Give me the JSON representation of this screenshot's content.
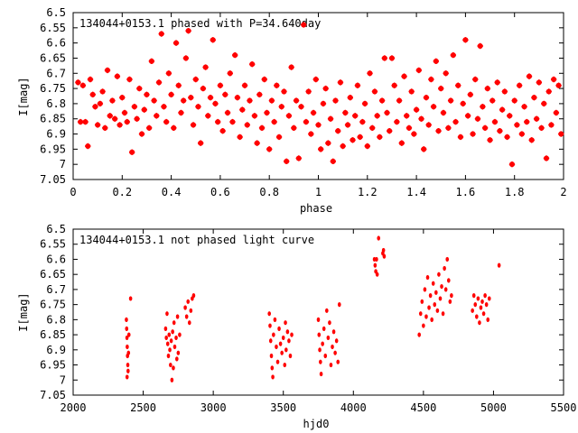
{
  "chart_data": [
    {
      "type": "scatter",
      "title": "134044+0153.1 phased with P=34.640day",
      "xlabel": "phase",
      "ylabel": "I[mag]",
      "xlim": [
        0,
        2
      ],
      "ylim": [
        6.5,
        7.05
      ],
      "y_inverted": true,
      "grid": false,
      "legend": "none",
      "xticks": [
        "0",
        "0.2",
        "0.4",
        "0.6",
        "0.8",
        "1",
        "1.2",
        "1.4",
        "1.6",
        "1.8",
        "2"
      ],
      "yticks": [
        "6.5",
        "6.55",
        "6.6",
        "6.65",
        "6.7",
        "6.75",
        "6.8",
        "6.85",
        "6.9",
        "6.95",
        "7",
        "7.05"
      ],
      "marker_color": "#ff0000",
      "points": [
        [
          0.02,
          6.73
        ],
        [
          0.03,
          6.86
        ],
        [
          0.04,
          6.74
        ],
        [
          0.05,
          6.86
        ],
        [
          0.06,
          6.94
        ],
        [
          0.07,
          6.72
        ],
        [
          0.08,
          6.77
        ],
        [
          0.09,
          6.81
        ],
        [
          0.1,
          6.87
        ],
        [
          0.11,
          6.8
        ],
        [
          0.12,
          6.76
        ],
        [
          0.13,
          6.88
        ],
        [
          0.14,
          6.69
        ],
        [
          0.15,
          6.84
        ],
        [
          0.16,
          6.79
        ],
        [
          0.17,
          6.85
        ],
        [
          0.18,
          6.71
        ],
        [
          0.19,
          6.87
        ],
        [
          0.2,
          6.78
        ],
        [
          0.21,
          6.83
        ],
        [
          0.22,
          6.86
        ],
        [
          0.23,
          6.72
        ],
        [
          0.24,
          6.96
        ],
        [
          0.25,
          6.81
        ],
        [
          0.26,
          6.85
        ],
        [
          0.27,
          6.75
        ],
        [
          0.28,
          6.9
        ],
        [
          0.29,
          6.82
        ],
        [
          0.3,
          6.77
        ],
        [
          0.31,
          6.88
        ],
        [
          0.32,
          6.66
        ],
        [
          0.33,
          6.79
        ],
        [
          0.34,
          6.84
        ],
        [
          0.35,
          6.73
        ],
        [
          0.36,
          6.57
        ],
        [
          0.37,
          6.81
        ],
        [
          0.38,
          6.86
        ],
        [
          0.39,
          6.7
        ],
        [
          0.4,
          6.77
        ],
        [
          0.41,
          6.88
        ],
        [
          0.42,
          6.6
        ],
        [
          0.43,
          6.74
        ],
        [
          0.44,
          6.83
        ],
        [
          0.45,
          6.79
        ],
        [
          0.46,
          6.65
        ],
        [
          0.47,
          6.56
        ],
        [
          0.48,
          6.78
        ],
        [
          0.49,
          6.87
        ],
        [
          0.5,
          6.72
        ],
        [
          0.51,
          6.81
        ],
        [
          0.52,
          6.93
        ],
        [
          0.53,
          6.75
        ],
        [
          0.54,
          6.68
        ],
        [
          0.55,
          6.84
        ],
        [
          0.56,
          6.78
        ],
        [
          0.57,
          6.59
        ],
        [
          0.58,
          6.8
        ],
        [
          0.59,
          6.86
        ],
        [
          0.6,
          6.74
        ],
        [
          0.61,
          6.89
        ],
        [
          0.62,
          6.77
        ],
        [
          0.63,
          6.83
        ],
        [
          0.64,
          6.7
        ],
        [
          0.65,
          6.86
        ],
        [
          0.66,
          6.64
        ],
        [
          0.67,
          6.78
        ],
        [
          0.68,
          6.91
        ],
        [
          0.69,
          6.82
        ],
        [
          0.7,
          6.74
        ],
        [
          0.71,
          6.87
        ],
        [
          0.72,
          6.79
        ],
        [
          0.73,
          6.67
        ],
        [
          0.74,
          6.84
        ],
        [
          0.75,
          6.93
        ],
        [
          0.76,
          6.77
        ],
        [
          0.77,
          6.88
        ],
        [
          0.78,
          6.72
        ],
        [
          0.79,
          6.83
        ],
        [
          0.8,
          6.95
        ],
        [
          0.81,
          6.79
        ],
        [
          0.82,
          6.86
        ],
        [
          0.83,
          6.74
        ],
        [
          0.84,
          6.91
        ],
        [
          0.85,
          6.81
        ],
        [
          0.86,
          6.76
        ],
        [
          0.87,
          6.99
        ],
        [
          0.88,
          6.84
        ],
        [
          0.89,
          6.68
        ],
        [
          0.9,
          6.88
        ],
        [
          0.91,
          6.79
        ],
        [
          0.92,
          6.98
        ],
        [
          0.93,
          6.81
        ],
        [
          0.94,
          6.54
        ],
        [
          0.95,
          6.86
        ],
        [
          0.96,
          6.76
        ],
        [
          0.97,
          6.9
        ],
        [
          0.98,
          6.83
        ],
        [
          0.99,
          6.72
        ],
        [
          1.0,
          6.87
        ],
        [
          1.01,
          6.95
        ],
        [
          1.02,
          6.8
        ],
        [
          1.03,
          6.75
        ],
        [
          1.04,
          6.93
        ],
        [
          1.05,
          6.85
        ],
        [
          1.06,
          6.99
        ],
        [
          1.07,
          6.79
        ],
        [
          1.08,
          6.89
        ],
        [
          1.09,
          6.73
        ],
        [
          1.1,
          6.94
        ],
        [
          1.11,
          6.83
        ],
        [
          1.12,
          6.87
        ],
        [
          1.13,
          6.78
        ],
        [
          1.14,
          6.92
        ],
        [
          1.15,
          6.84
        ],
        [
          1.16,
          6.74
        ],
        [
          1.17,
          6.91
        ],
        [
          1.18,
          6.86
        ],
        [
          1.19,
          6.8
        ],
        [
          1.2,
          6.94
        ],
        [
          1.21,
          6.7
        ],
        [
          1.22,
          6.88
        ],
        [
          1.23,
          6.76
        ],
        [
          1.24,
          6.84
        ],
        [
          1.25,
          6.91
        ],
        [
          1.26,
          6.79
        ],
        [
          1.27,
          6.65
        ],
        [
          1.28,
          6.83
        ],
        [
          1.29,
          6.89
        ],
        [
          1.3,
          6.65
        ],
        [
          1.31,
          6.74
        ],
        [
          1.32,
          6.86
        ],
        [
          1.33,
          6.79
        ],
        [
          1.34,
          6.93
        ],
        [
          1.35,
          6.71
        ],
        [
          1.36,
          6.84
        ],
        [
          1.37,
          6.88
        ],
        [
          1.38,
          6.76
        ],
        [
          1.39,
          6.9
        ],
        [
          1.4,
          6.82
        ],
        [
          1.41,
          6.69
        ],
        [
          1.42,
          6.85
        ],
        [
          1.43,
          6.95
        ],
        [
          1.44,
          6.78
        ],
        [
          1.45,
          6.87
        ],
        [
          1.46,
          6.72
        ],
        [
          1.47,
          6.81
        ],
        [
          1.48,
          6.66
        ],
        [
          1.49,
          6.89
        ],
        [
          1.5,
          6.75
        ],
        [
          1.51,
          6.83
        ],
        [
          1.52,
          6.7
        ],
        [
          1.53,
          6.88
        ],
        [
          1.54,
          6.79
        ],
        [
          1.55,
          6.64
        ],
        [
          1.56,
          6.86
        ],
        [
          1.57,
          6.74
        ],
        [
          1.58,
          6.91
        ],
        [
          1.59,
          6.8
        ],
        [
          1.6,
          6.59
        ],
        [
          1.61,
          6.84
        ],
        [
          1.62,
          6.77
        ],
        [
          1.63,
          6.9
        ],
        [
          1.64,
          6.72
        ],
        [
          1.65,
          6.85
        ],
        [
          1.66,
          6.61
        ],
        [
          1.67,
          6.81
        ],
        [
          1.68,
          6.88
        ],
        [
          1.69,
          6.75
        ],
        [
          1.7,
          6.92
        ],
        [
          1.71,
          6.79
        ],
        [
          1.72,
          6.86
        ],
        [
          1.73,
          6.73
        ],
        [
          1.74,
          6.89
        ],
        [
          1.75,
          6.82
        ],
        [
          1.76,
          6.76
        ],
        [
          1.77,
          6.91
        ],
        [
          1.78,
          6.84
        ],
        [
          1.79,
          7.0
        ],
        [
          1.8,
          6.79
        ],
        [
          1.81,
          6.87
        ],
        [
          1.82,
          6.74
        ],
        [
          1.83,
          6.9
        ],
        [
          1.84,
          6.81
        ],
        [
          1.85,
          6.86
        ],
        [
          1.86,
          6.71
        ],
        [
          1.87,
          6.92
        ],
        [
          1.88,
          6.78
        ],
        [
          1.89,
          6.85
        ],
        [
          1.9,
          6.73
        ],
        [
          1.91,
          6.88
        ],
        [
          1.92,
          6.8
        ],
        [
          1.93,
          6.98
        ],
        [
          1.94,
          6.76
        ],
        [
          1.95,
          6.87
        ],
        [
          1.96,
          6.72
        ],
        [
          1.97,
          6.83
        ],
        [
          1.98,
          6.74
        ],
        [
          1.99,
          6.9
        ]
      ]
    },
    {
      "type": "scatter",
      "title": "134044+0153.1 not phased light curve",
      "xlabel": "hjd0",
      "ylabel": "I[mag]",
      "xlim": [
        2000,
        5500
      ],
      "ylim": [
        6.5,
        7.05
      ],
      "y_inverted": true,
      "grid": false,
      "legend": "none",
      "xticks": [
        "2000",
        "2500",
        "3000",
        "3500",
        "4000",
        "4500",
        "5000",
        "5500"
      ],
      "yticks": [
        "6.5",
        "6.55",
        "6.6",
        "6.65",
        "6.7",
        "6.75",
        "6.8",
        "6.85",
        "6.9",
        "6.95",
        "7",
        "7.05"
      ],
      "marker_color": "#ff0000",
      "points": [
        [
          2380,
          6.8
        ],
        [
          2382,
          6.83
        ],
        [
          2384,
          6.86
        ],
        [
          2386,
          6.89
        ],
        [
          2388,
          6.92
        ],
        [
          2390,
          6.95
        ],
        [
          2392,
          6.97
        ],
        [
          2385,
          6.99
        ],
        [
          2395,
          6.91
        ],
        [
          2398,
          6.85
        ],
        [
          2410,
          6.73
        ],
        [
          2660,
          6.83
        ],
        [
          2665,
          6.86
        ],
        [
          2670,
          6.78
        ],
        [
          2675,
          6.88
        ],
        [
          2680,
          6.92
        ],
        [
          2685,
          6.85
        ],
        [
          2690,
          6.9
        ],
        [
          2695,
          6.95
        ],
        [
          2700,
          6.87
        ],
        [
          2705,
          7.0
        ],
        [
          2710,
          6.84
        ],
        [
          2715,
          6.96
        ],
        [
          2720,
          6.81
        ],
        [
          2725,
          6.89
        ],
        [
          2735,
          6.86
        ],
        [
          2740,
          6.93
        ],
        [
          2745,
          6.79
        ],
        [
          2750,
          6.91
        ],
        [
          2760,
          6.85
        ],
        [
          2800,
          6.76
        ],
        [
          2810,
          6.79
        ],
        [
          2820,
          6.74
        ],
        [
          2830,
          6.81
        ],
        [
          2840,
          6.77
        ],
        [
          2850,
          6.73
        ],
        [
          2860,
          6.72
        ],
        [
          3400,
          6.78
        ],
        [
          3405,
          6.82
        ],
        [
          3410,
          6.87
        ],
        [
          3415,
          6.92
        ],
        [
          3420,
          6.96
        ],
        [
          3425,
          6.99
        ],
        [
          3430,
          6.85
        ],
        [
          3440,
          6.8
        ],
        [
          3450,
          6.89
        ],
        [
          3460,
          6.94
        ],
        [
          3470,
          6.83
        ],
        [
          3480,
          6.88
        ],
        [
          3490,
          6.91
        ],
        [
          3500,
          6.86
        ],
        [
          3510,
          6.95
        ],
        [
          3515,
          6.81
        ],
        [
          3520,
          6.9
        ],
        [
          3530,
          6.84
        ],
        [
          3540,
          6.87
        ],
        [
          3550,
          6.92
        ],
        [
          3560,
          6.85
        ],
        [
          3750,
          6.8
        ],
        [
          3755,
          6.85
        ],
        [
          3760,
          6.9
        ],
        [
          3765,
          6.94
        ],
        [
          3770,
          6.98
        ],
        [
          3780,
          6.88
        ],
        [
          3790,
          6.83
        ],
        [
          3800,
          6.92
        ],
        [
          3810,
          6.77
        ],
        [
          3820,
          6.86
        ],
        [
          3830,
          6.81
        ],
        [
          3840,
          6.95
        ],
        [
          3850,
          6.89
        ],
        [
          3860,
          6.84
        ],
        [
          3870,
          6.91
        ],
        [
          3880,
          6.87
        ],
        [
          3890,
          6.94
        ],
        [
          3900,
          6.75
        ],
        [
          4150,
          6.6
        ],
        [
          4155,
          6.62
        ],
        [
          4160,
          6.64
        ],
        [
          4165,
          6.6
        ],
        [
          4170,
          6.65
        ],
        [
          4180,
          6.53
        ],
        [
          4210,
          6.58
        ],
        [
          4215,
          6.57
        ],
        [
          4220,
          6.59
        ],
        [
          4470,
          6.85
        ],
        [
          4480,
          6.78
        ],
        [
          4490,
          6.74
        ],
        [
          4500,
          6.82
        ],
        [
          4510,
          6.7
        ],
        [
          4520,
          6.79
        ],
        [
          4530,
          6.66
        ],
        [
          4540,
          6.76
        ],
        [
          4550,
          6.72
        ],
        [
          4560,
          6.8
        ],
        [
          4570,
          6.68
        ],
        [
          4580,
          6.75
        ],
        [
          4590,
          6.71
        ],
        [
          4600,
          6.77
        ],
        [
          4610,
          6.65
        ],
        [
          4620,
          6.73
        ],
        [
          4630,
          6.69
        ],
        [
          4640,
          6.78
        ],
        [
          4650,
          6.63
        ],
        [
          4660,
          6.7
        ],
        [
          4670,
          6.6
        ],
        [
          4680,
          6.67
        ],
        [
          4690,
          6.74
        ],
        [
          4700,
          6.72
        ],
        [
          4850,
          6.77
        ],
        [
          4860,
          6.72
        ],
        [
          4870,
          6.75
        ],
        [
          4880,
          6.79
        ],
        [
          4890,
          6.73
        ],
        [
          4900,
          6.81
        ],
        [
          4910,
          6.76
        ],
        [
          4920,
          6.74
        ],
        [
          4930,
          6.78
        ],
        [
          4940,
          6.72
        ],
        [
          4950,
          6.75
        ],
        [
          4960,
          6.8
        ],
        [
          4970,
          6.73
        ],
        [
          5040,
          6.62
        ]
      ]
    }
  ]
}
